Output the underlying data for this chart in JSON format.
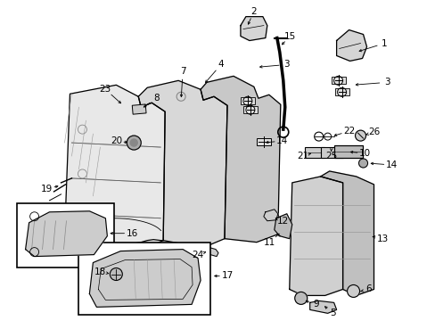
{
  "bg_color": "#ffffff",
  "fig_width": 4.89,
  "fig_height": 3.6,
  "dpi": 100,
  "label_fontsize": 7.5
}
